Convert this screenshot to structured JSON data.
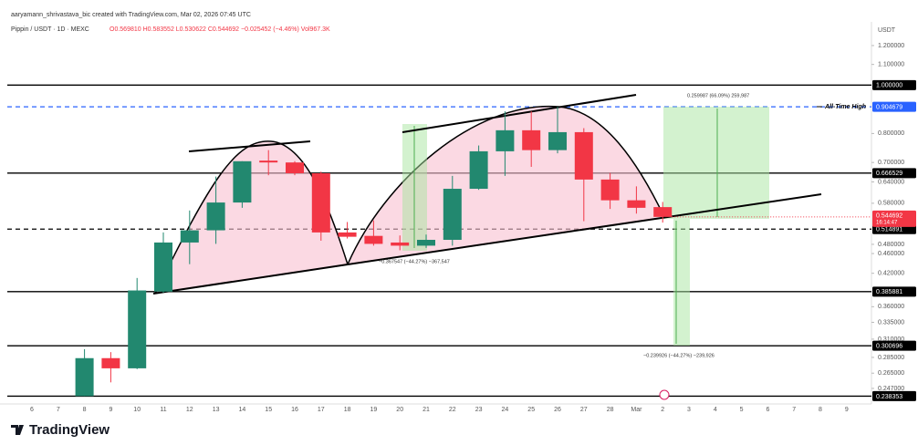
{
  "header": {
    "credit": "aaryamann_shrivastava_bic created with TradingView.com, Mar 02, 2026 07:45 UTC",
    "symbol": "Pippin / USDT · 1D · MEXC",
    "ohlc": "O0.569810 H0.583552 L0.530622 C0.544692 −0.025452 (−4.46%) Vol967.3K"
  },
  "brand": "TradingView",
  "chart_data": {
    "type": "candlestick",
    "currency": "USDT",
    "log": true,
    "categories": [
      "6",
      "7",
      "8",
      "9",
      "10",
      "11",
      "12",
      "13",
      "14",
      "15",
      "16",
      "17",
      "18",
      "19",
      "20",
      "21",
      "22",
      "23",
      "24",
      "25",
      "26",
      "27",
      "28",
      "Mar",
      "2",
      "3",
      "4",
      "5",
      "6",
      "7",
      "8",
      "9"
    ],
    "open": [
      null,
      null,
      0.2384,
      0.284,
      0.271,
      0.386,
      0.484,
      0.512,
      0.582,
      0.706,
      0.7,
      0.666,
      0.507,
      0.499,
      0.484,
      0.477,
      0.49,
      0.62,
      0.737,
      0.812,
      0.741,
      0.805,
      0.647,
      0.588,
      0.56981,
      null,
      null,
      null,
      null,
      null,
      null,
      null
    ],
    "high": [
      null,
      null,
      0.296,
      0.292,
      0.411,
      0.507,
      0.561,
      0.656,
      0.704,
      0.741,
      0.704,
      0.671,
      0.532,
      0.536,
      0.5,
      0.502,
      0.658,
      0.757,
      0.886,
      0.886,
      0.904679,
      0.82,
      0.667,
      0.627,
      0.583552,
      null,
      null,
      null,
      null,
      null,
      null,
      null
    ],
    "low": [
      null,
      null,
      0.2384,
      0.254,
      0.27,
      0.384,
      0.438,
      0.481,
      0.568,
      0.66,
      0.66,
      0.488,
      0.493,
      0.477,
      0.467,
      0.472,
      0.477,
      0.617,
      0.658,
      0.686,
      0.73,
      0.534,
      0.565,
      0.553,
      0.530622,
      null,
      null,
      null,
      null,
      null,
      null,
      null
    ],
    "close": [
      null,
      null,
      0.284,
      0.271,
      0.388,
      0.484,
      0.512,
      0.582,
      0.704,
      0.7,
      0.666,
      0.507,
      0.497,
      0.481,
      0.477,
      0.49,
      0.62,
      0.737,
      0.812,
      0.741,
      0.805,
      0.647,
      0.588,
      0.568,
      0.544692,
      null,
      null,
      null,
      null,
      null,
      null,
      null
    ],
    "up_color": "#22886f",
    "down_color": "#f23645",
    "ylim": [
      0.228,
      1.305
    ],
    "yticks": [
      {
        "value": 1.2,
        "label": "1.200000"
      },
      {
        "value": 1.1,
        "label": "1.100000"
      },
      {
        "value": 0.8,
        "label": "0.800000"
      },
      {
        "value": 0.7,
        "label": "0.700000"
      },
      {
        "value": 0.64,
        "label": "0.640000"
      },
      {
        "value": 0.58,
        "label": "0.580000"
      },
      {
        "value": 0.48,
        "label": "0.480000"
      },
      {
        "value": 0.46,
        "label": "0.460000"
      },
      {
        "value": 0.42,
        "label": "0.420000"
      },
      {
        "value": 0.36,
        "label": "0.360000"
      },
      {
        "value": 0.335,
        "label": "0.335000"
      },
      {
        "value": 0.31,
        "label": "0.310000"
      },
      {
        "value": 0.285,
        "label": "0.285000"
      },
      {
        "value": 0.265,
        "label": "0.265000"
      },
      {
        "value": 0.247,
        "label": "0.247000"
      }
    ],
    "levels": [
      {
        "value": 1.0,
        "label": "1.000000",
        "color": "#000000",
        "dashed": false
      },
      {
        "value": 0.904679,
        "label": "0.904679",
        "color": "#2962ff",
        "dashed": true
      },
      {
        "value": 0.666529,
        "label": "0.666529",
        "color": "#000000",
        "dashed": false
      },
      {
        "value": 0.514891,
        "label": "0.514891",
        "color": "#000000",
        "dashed": true
      },
      {
        "value": 0.385881,
        "label": "0.385881",
        "color": "#000000",
        "dashed": false
      },
      {
        "value": 0.300696,
        "label": "0.300696",
        "color": "#000000",
        "dashed": false
      },
      {
        "value": 0.238353,
        "label": "0.238353",
        "color": "#000000",
        "dashed": false
      }
    ],
    "last_price": {
      "value": 0.544692,
      "label": "0.544692",
      "countdown": "16:14:47",
      "color": "#f23645"
    },
    "ath_label": "All-Time High",
    "annotations": [
      "0.259987 (66.09%) 259,987",
      "−0.367547 (−44.27%) −367,547",
      "−0.239926 (−44.27%) −239,926"
    ]
  }
}
